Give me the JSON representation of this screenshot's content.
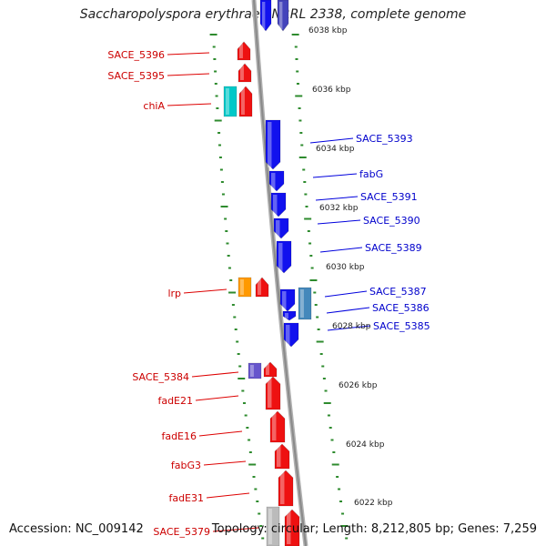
{
  "title": "Saccharopolyspora erythraea NRRL 2338, complete genome",
  "footer": {
    "accession": "Accession: NC_009142",
    "summary": "Topology: circular; Length: 8,212,805 bp; Genes: 7,259"
  },
  "colors": {
    "backbone": "#8a8a8a",
    "tick": "#2e8b2e",
    "label_left": "#cc0000",
    "label_right": "#0000cc",
    "label_line_left": "#dd0000",
    "label_line_right": "#0000dd"
  },
  "scale_labels": [
    "6038 kbp",
    "6036 kbp",
    "6034 kbp",
    "6032 kbp",
    "6030 kbp",
    "6028 kbp",
    "6026 kbp",
    "6024 kbp",
    "6022 kbp"
  ],
  "genes_left": [
    {
      "name": "SACE_5396",
      "color": "#ee1111"
    },
    {
      "name": "SACE_5395",
      "color": "#ee1111"
    },
    {
      "name": "chiA",
      "color": "#00c8c8"
    },
    {
      "name": "lrp",
      "color": "#ff9900"
    },
    {
      "name": "SACE_5384",
      "color": "#6655cc"
    },
    {
      "name": "fadE21",
      "color": "#ee1111"
    },
    {
      "name": "fadE16",
      "color": "#ee1111"
    },
    {
      "name": "fabG3",
      "color": "#ee1111"
    },
    {
      "name": "fadE31",
      "color": "#ee1111"
    },
    {
      "name": "SACE_5379",
      "color": "#ee1111"
    }
  ],
  "genes_right": [
    {
      "name": "SACE_5393",
      "color": "#1111ee"
    },
    {
      "name": "fabG",
      "color": "#1111ee"
    },
    {
      "name": "SACE_5391",
      "color": "#1111ee"
    },
    {
      "name": "SACE_5390",
      "color": "#1111ee"
    },
    {
      "name": "SACE_5389",
      "color": "#1111ee"
    },
    {
      "name": "SACE_5387",
      "color": "#4488bb"
    },
    {
      "name": "SACE_5386",
      "color": "#1111ee"
    },
    {
      "name": "SACE_5385",
      "color": "#1111ee"
    }
  ]
}
